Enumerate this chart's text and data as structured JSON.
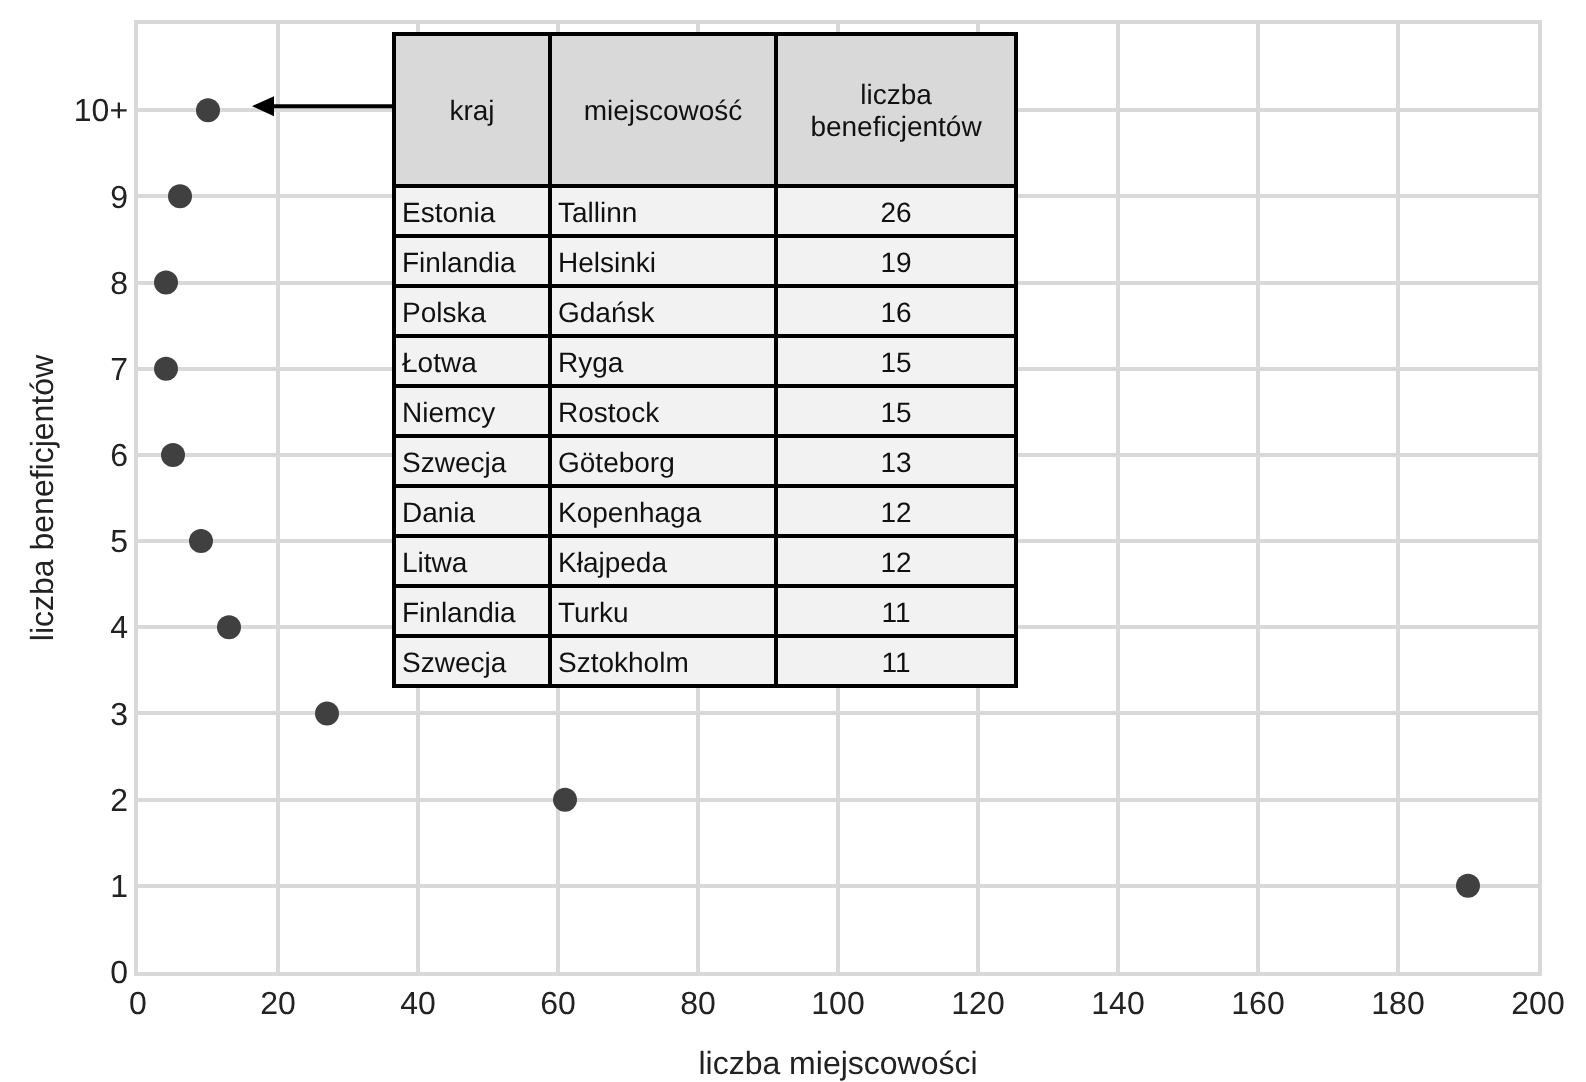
{
  "chart_data": {
    "type": "scatter",
    "xlabel": "liczba miejscowości",
    "ylabel": "liczba beneficjentów",
    "x": [
      10,
      6,
      4,
      4,
      5,
      9,
      13,
      27,
      61,
      190
    ],
    "values": [
      10,
      9,
      8,
      7,
      6,
      5,
      4,
      3,
      2,
      1
    ],
    "color": "#404040",
    "marker": "circle",
    "grid": true,
    "xlim": [
      0,
      200
    ],
    "xticks": [
      0,
      20,
      40,
      60,
      80,
      100,
      120,
      140,
      160,
      180,
      200
    ],
    "ylim": [
      0,
      11
    ],
    "yticks": [
      0,
      1,
      2,
      3,
      4,
      5,
      6,
      7,
      8,
      9,
      {
        "value": 10,
        "label": "10+"
      }
    ],
    "annotations": [
      "kraj",
      "miejscowość",
      "liczba beneficjentów",
      "Estonia",
      "Tallinn",
      "26",
      "Finlandia",
      "Helsinki",
      "19",
      "Polska",
      "Gdańsk",
      "16",
      "Łotwa",
      "Ryga",
      "15",
      "Niemcy",
      "Rostock",
      "15",
      "Szwecja",
      "Göteborg",
      "13",
      "Dania",
      "Kopenhaga",
      "12",
      "Litwa",
      "Kłajpeda",
      "12",
      "Finlandia",
      "Turku",
      "11",
      "Szwecja",
      "Sztokholm",
      "11"
    ]
  }
}
